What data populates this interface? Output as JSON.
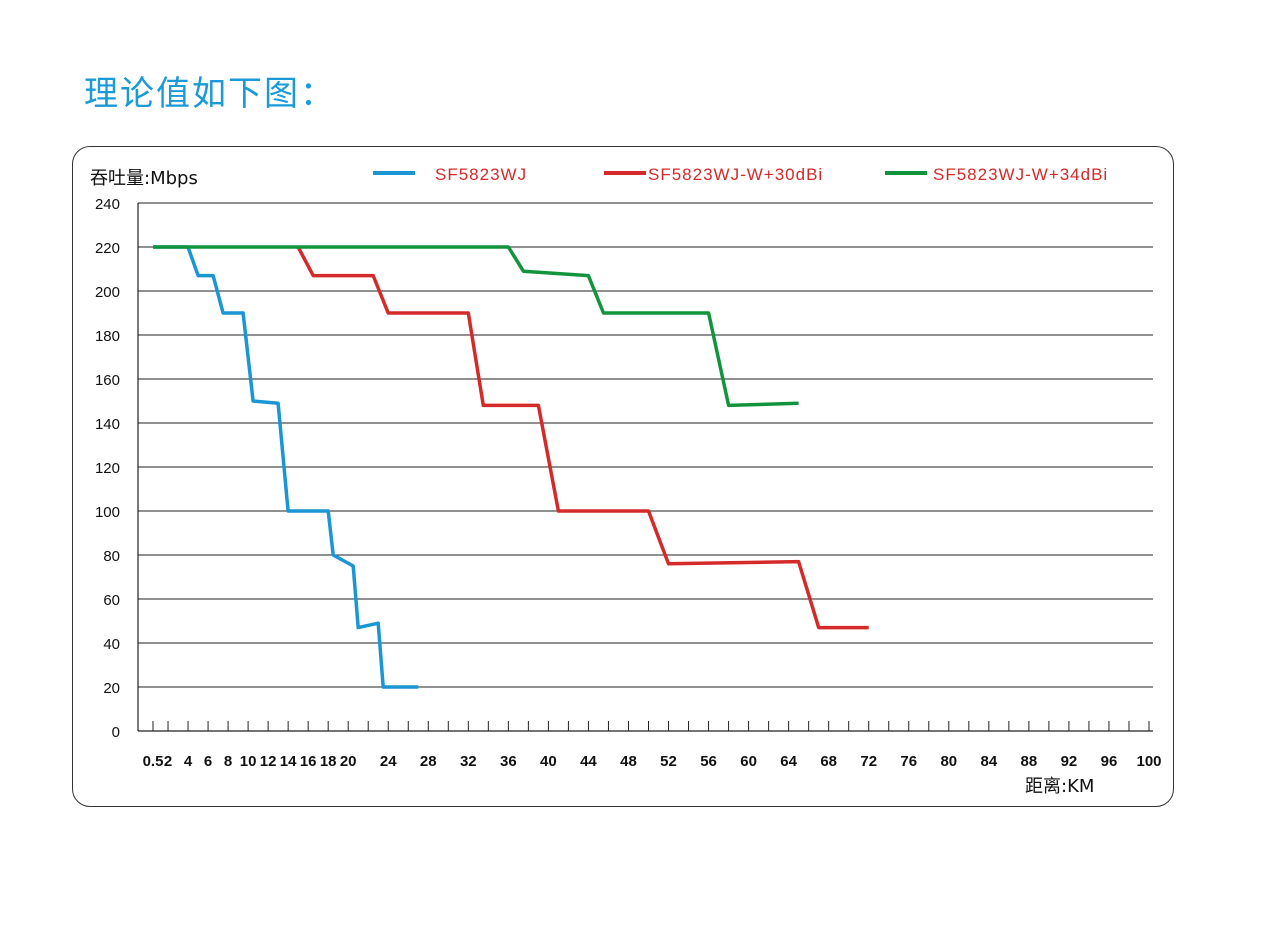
{
  "page": {
    "title": "理论值如下图："
  },
  "chart_data": {
    "type": "line",
    "ylabel": "吞吐量:Mbps",
    "xlabel": "距离:KM",
    "ylim": [
      0,
      240
    ],
    "yticks": [
      0,
      20,
      40,
      60,
      80,
      100,
      120,
      140,
      160,
      180,
      200,
      220,
      240
    ],
    "xlim": [
      0,
      100
    ],
    "xticks": [
      0.5,
      2,
      4,
      6,
      8,
      10,
      12,
      14,
      16,
      18,
      20,
      24,
      28,
      32,
      36,
      40,
      44,
      48,
      52,
      56,
      60,
      64,
      68,
      72,
      76,
      80,
      84,
      88,
      92,
      96,
      100
    ],
    "xtick_labels": [
      "0.5",
      "2",
      "4",
      "6",
      "8",
      "10",
      "12",
      "14",
      "16",
      "18",
      "20",
      "24",
      "28",
      "32",
      "36",
      "40",
      "44",
      "48",
      "52",
      "56",
      "60",
      "64",
      "68",
      "72",
      "76",
      "80",
      "84",
      "88",
      "92",
      "96",
      "100"
    ],
    "grid": "horizontal",
    "legend_position": "top",
    "series": [
      {
        "name": "SF5823WJ",
        "color": "#1a96d4",
        "points": [
          [
            0.5,
            220
          ],
          [
            4,
            220
          ],
          [
            5,
            207
          ],
          [
            6.5,
            207
          ],
          [
            7.5,
            190
          ],
          [
            9.5,
            190
          ],
          [
            10.5,
            150
          ],
          [
            13,
            149
          ],
          [
            14,
            100
          ],
          [
            18,
            100
          ],
          [
            18.5,
            80
          ],
          [
            20.5,
            75
          ],
          [
            21,
            47
          ],
          [
            23,
            49
          ],
          [
            23.5,
            20
          ],
          [
            27,
            20
          ]
        ]
      },
      {
        "name": "SF5823WJ-W+30dBi",
        "color": "#d42a2a",
        "points": [
          [
            15,
            220
          ],
          [
            16.5,
            207
          ],
          [
            22.5,
            207
          ],
          [
            24,
            190
          ],
          [
            32,
            190
          ],
          [
            33.5,
            148
          ],
          [
            39,
            148
          ],
          [
            41,
            100
          ],
          [
            50,
            100
          ],
          [
            52,
            76
          ],
          [
            65,
            77
          ],
          [
            67,
            47
          ],
          [
            72,
            47
          ]
        ]
      },
      {
        "name": "SF5823WJ-W+34dBi",
        "color": "#12943d",
        "points": [
          [
            0.5,
            220
          ],
          [
            36,
            220
          ],
          [
            37.5,
            209
          ],
          [
            44,
            207
          ],
          [
            45.5,
            190
          ],
          [
            56,
            190
          ],
          [
            58,
            148
          ],
          [
            65,
            149
          ]
        ]
      }
    ]
  }
}
